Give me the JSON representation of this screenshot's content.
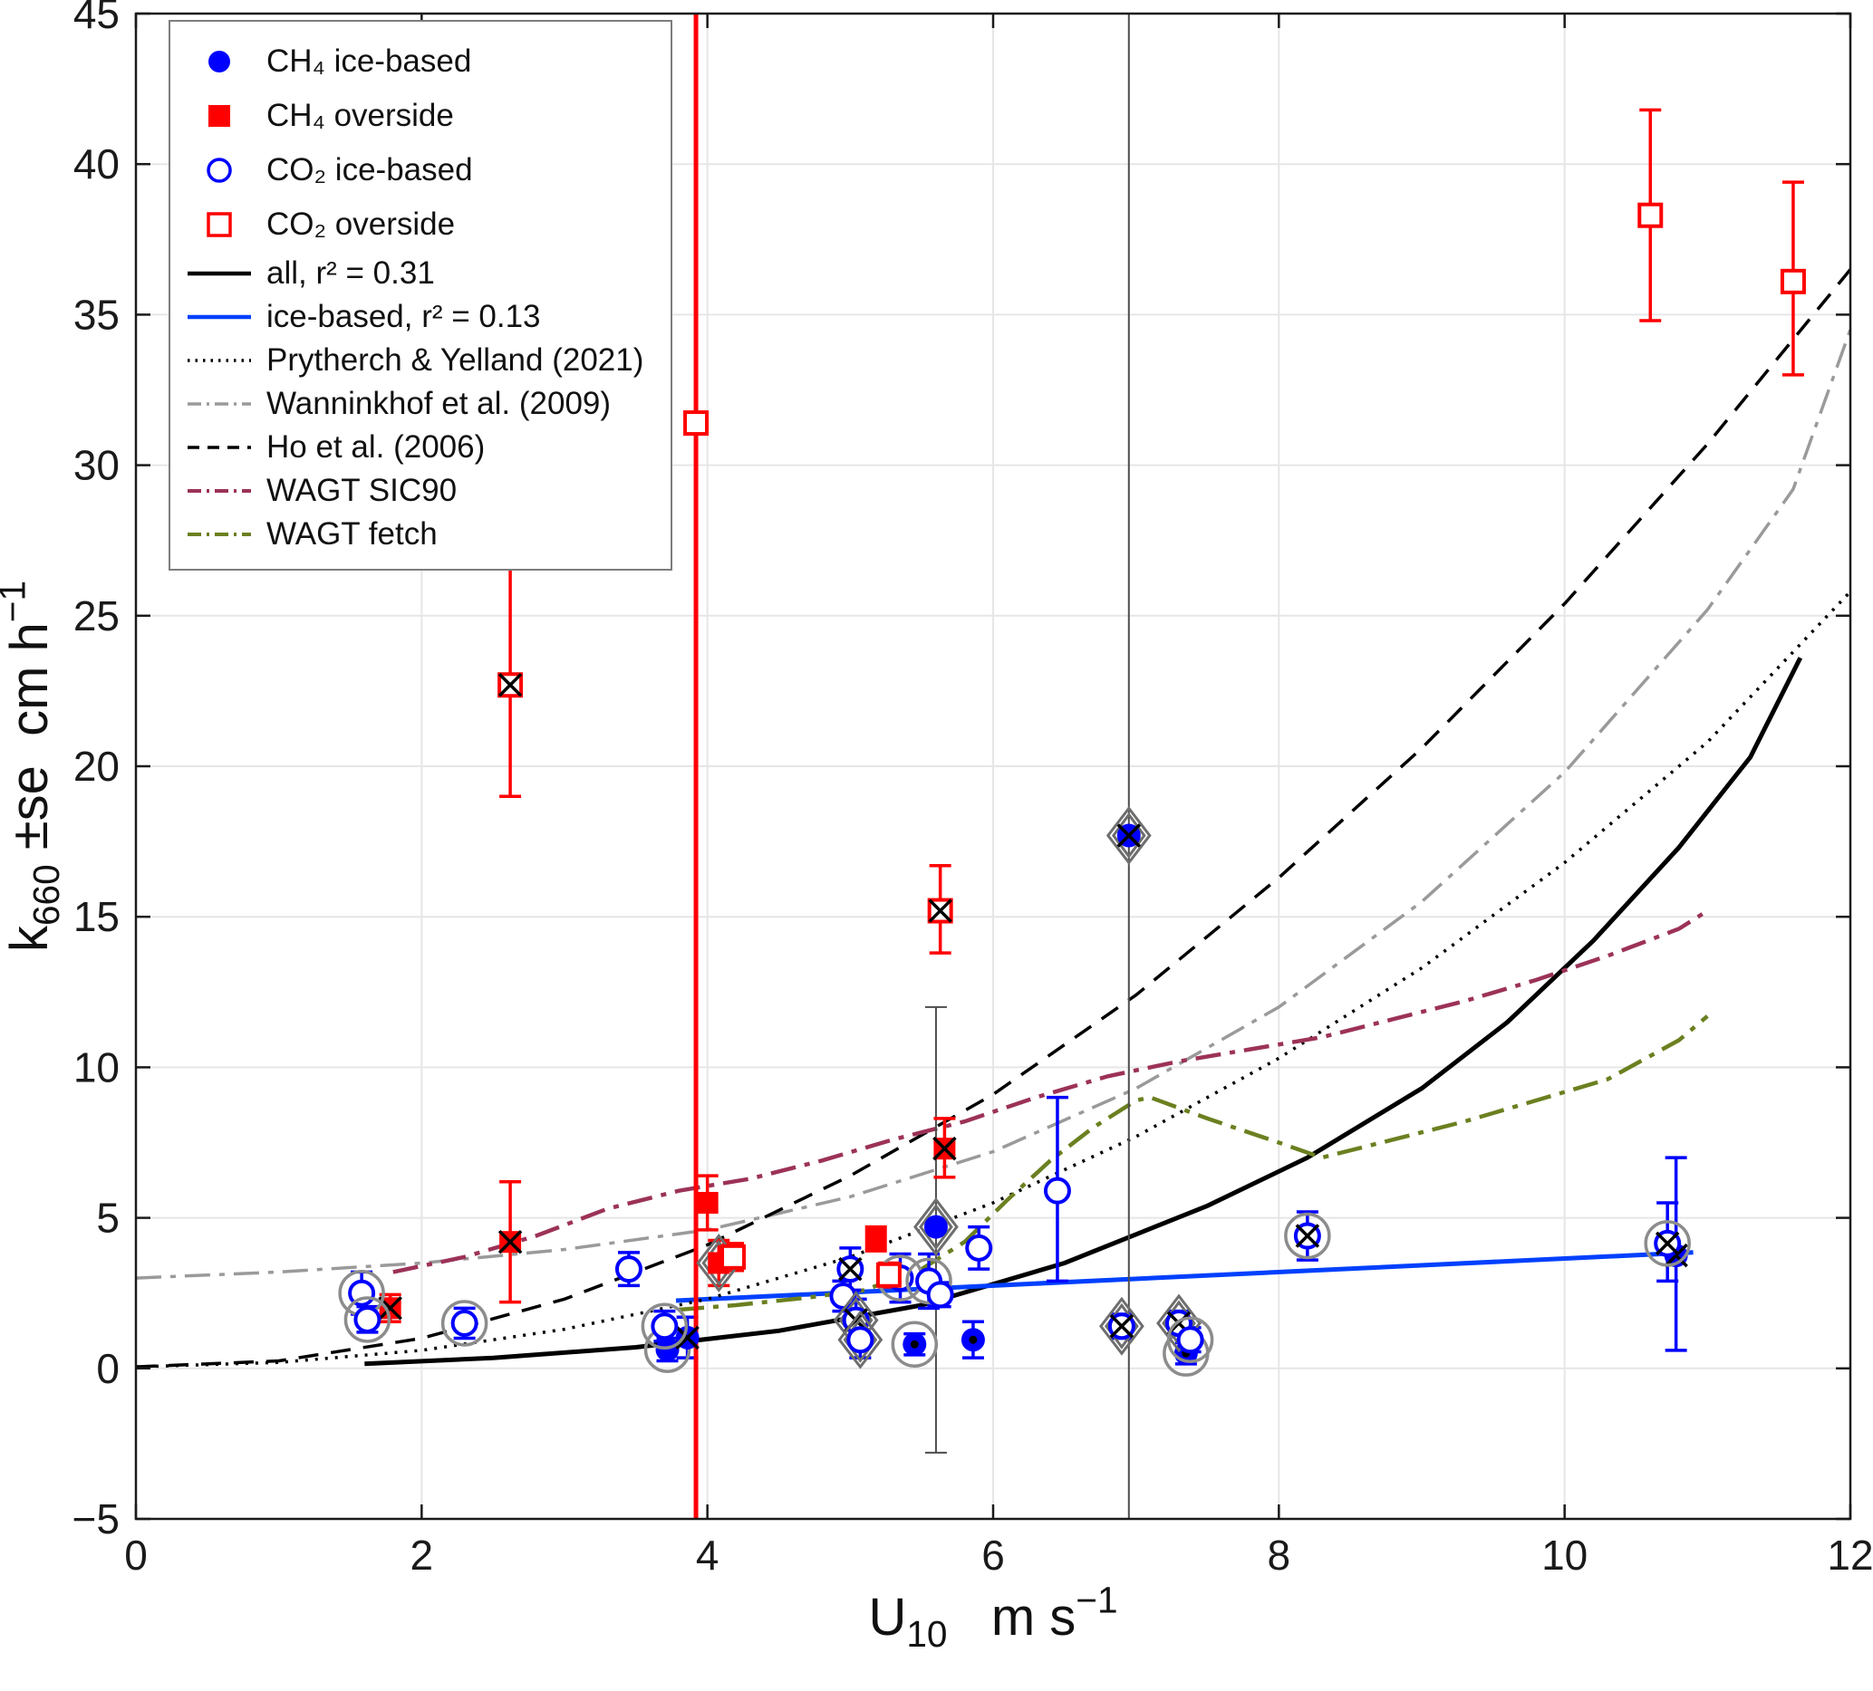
{
  "chart_data": {
    "type": "scatter",
    "title": "",
    "xlabel_parts": [
      [
        "U",
        "n"
      ],
      [
        "10",
        "s"
      ],
      [
        "   m s",
        "n"
      ],
      [
        "−1",
        "u"
      ]
    ],
    "ylabel_parts": [
      [
        "k",
        "n"
      ],
      [
        "660",
        "s"
      ],
      [
        " ±se  cm h",
        "n"
      ],
      [
        "−1",
        "u"
      ]
    ],
    "xlim": [
      0,
      12
    ],
    "ylim": [
      -5,
      45
    ],
    "xticks": [
      0,
      2,
      4,
      6,
      8,
      10,
      12
    ],
    "yticks": [
      -5,
      0,
      5,
      10,
      15,
      20,
      25,
      30,
      35,
      40,
      45
    ],
    "grid": true,
    "grid_color": "#e6e6e6",
    "axis_color": "#1a1a1a",
    "background": "#ffffff",
    "legend_position": "top-left",
    "series": [
      {
        "id": "ch4-ice",
        "name": "CH₄ ice-based",
        "marker": "circle",
        "filled": true,
        "color": "#0000ff",
        "points": [
          {
            "x": 3.72,
            "y": 0.62,
            "lo": 0.25,
            "hi": 1.0,
            "ov": [
              "circ"
            ]
          },
          {
            "x": 3.86,
            "y": 1.02,
            "lo": 0.35,
            "hi": 1.7,
            "ov": [
              "x"
            ]
          },
          {
            "x": 5.45,
            "y": 0.8,
            "lo": 0.45,
            "hi": 1.15,
            "ov": [
              "circ",
              "dot"
            ]
          },
          {
            "x": 5.6,
            "y": 4.7,
            "lo": -2.8,
            "hi": 12.0,
            "ov": [
              "diam"
            ],
            "ec": "#4d4d4d",
            "ew": 2
          },
          {
            "x": 5.86,
            "y": 0.95,
            "lo": 0.35,
            "hi": 1.55,
            "ov": [
              "dot"
            ]
          },
          {
            "x": 6.95,
            "y": 17.7,
            "lo": -6,
            "hi": 46,
            "ov": [
              "diam",
              "x"
            ],
            "ec": "#4d4d4d",
            "ew": 2
          },
          {
            "x": 7.35,
            "y": 0.5,
            "lo": 0.15,
            "hi": 0.85,
            "ov": [
              "circ",
              "dot"
            ]
          },
          {
            "x": 10.78,
            "y": 3.75,
            "lo": 0.6,
            "hi": 7.0,
            "ov": [
              "x"
            ]
          }
        ]
      },
      {
        "id": "ch4-overside",
        "name": "CH₄ overside",
        "marker": "square",
        "filled": true,
        "color": "#ff0000",
        "points": [
          {
            "x": 1.78,
            "y": 2.0,
            "lo": 1.55,
            "hi": 2.45,
            "ov": [
              "x"
            ]
          },
          {
            "x": 2.62,
            "y": 4.2,
            "lo": 2.2,
            "hi": 6.2,
            "ov": [
              "x"
            ]
          },
          {
            "x": 4.0,
            "y": 5.5,
            "lo": 4.6,
            "hi": 6.4
          },
          {
            "x": 4.08,
            "y": 3.5,
            "lo": 2.75,
            "hi": 4.25,
            "ov": [
              "diam"
            ]
          },
          {
            "x": 5.18,
            "y": 4.3,
            "lo": 3.9,
            "hi": 4.7
          },
          {
            "x": 5.66,
            "y": 7.3,
            "lo": 6.35,
            "hi": 8.3,
            "ov": [
              "x"
            ]
          }
        ]
      },
      {
        "id": "co2-ice",
        "name": "CO₂ ice-based",
        "marker": "circle",
        "filled": false,
        "color": "#0000ff",
        "points": [
          {
            "x": 1.58,
            "y": 2.5,
            "lo": 1.8,
            "hi": 3.2,
            "ov": [
              "circ"
            ]
          },
          {
            "x": 1.62,
            "y": 1.62,
            "lo": 1.2,
            "hi": 2.05,
            "ov": [
              "circ"
            ]
          },
          {
            "x": 2.3,
            "y": 1.5,
            "lo": 1.0,
            "hi": 2.0,
            "ov": [
              "circ"
            ]
          },
          {
            "x": 3.45,
            "y": 3.3,
            "lo": 2.75,
            "hi": 3.85
          },
          {
            "x": 3.7,
            "y": 1.4,
            "lo": 0.9,
            "hi": 1.9,
            "ov": [
              "circ"
            ]
          },
          {
            "x": 4.95,
            "y": 2.4,
            "lo": 1.9,
            "hi": 2.9
          },
          {
            "x": 5.0,
            "y": 3.3,
            "lo": 2.6,
            "hi": 4.0,
            "ov": [
              "x"
            ]
          },
          {
            "x": 5.04,
            "y": 1.6,
            "lo": 0.9,
            "hi": 2.3,
            "ov": [
              "diam",
              "x"
            ]
          },
          {
            "x": 5.07,
            "y": 0.95,
            "lo": 0.35,
            "hi": 1.55,
            "ov": [
              "diam"
            ]
          },
          {
            "x": 5.35,
            "y": 3.0,
            "lo": 2.2,
            "hi": 3.8,
            "ov": [
              "circ"
            ]
          },
          {
            "x": 5.55,
            "y": 2.9,
            "lo": 2.0,
            "hi": 3.8,
            "ov": [
              "circ"
            ]
          },
          {
            "x": 5.63,
            "y": 2.45,
            "lo": 2.05,
            "hi": 2.85
          },
          {
            "x": 5.9,
            "y": 4.0,
            "lo": 3.3,
            "hi": 4.7
          },
          {
            "x": 6.45,
            "y": 5.9,
            "lo": 2.9,
            "hi": 9.0
          },
          {
            "x": 6.9,
            "y": 1.4,
            "lo": 1.0,
            "hi": 1.8,
            "ov": [
              "diam",
              "x"
            ]
          },
          {
            "x": 7.3,
            "y": 1.5,
            "lo": 1.1,
            "hi": 1.9,
            "ov": [
              "diam",
              "x"
            ]
          },
          {
            "x": 7.38,
            "y": 0.95,
            "lo": 0.55,
            "hi": 1.35,
            "ov": [
              "circ"
            ]
          },
          {
            "x": 8.2,
            "y": 4.4,
            "lo": 3.6,
            "hi": 5.2,
            "ov": [
              "circ",
              "x"
            ]
          },
          {
            "x": 10.72,
            "y": 4.15,
            "lo": 2.9,
            "hi": 5.5,
            "ov": [
              "circ",
              "x"
            ]
          }
        ]
      },
      {
        "id": "co2-overside",
        "name": "CO₂ overside",
        "marker": "square",
        "filled": false,
        "color": "#ff0000",
        "points": [
          {
            "x": 2.62,
            "y": 22.7,
            "lo": 19.0,
            "hi": 26.6,
            "ov": [
              "x"
            ]
          },
          {
            "x": 3.92,
            "y": 31.4,
            "lo": -6,
            "hi": 46,
            "ew": 5
          },
          {
            "x": 4.18,
            "y": 3.7,
            "lo": 3.25,
            "hi": 4.15
          },
          {
            "x": 5.27,
            "y": 3.1,
            "lo": 2.7,
            "hi": 3.5
          },
          {
            "x": 5.63,
            "y": 15.2,
            "lo": 13.8,
            "hi": 16.7,
            "ov": [
              "x"
            ]
          },
          {
            "x": 10.6,
            "y": 38.3,
            "lo": 34.8,
            "hi": 41.8
          },
          {
            "x": 11.6,
            "y": 36.1,
            "lo": 33.0,
            "hi": 39.4
          }
        ]
      }
    ],
    "curves": [
      {
        "id": "fit-all",
        "name": "all, r² = 0.31",
        "style": "solid",
        "color": "#000000",
        "width": 5,
        "points": [
          [
            1.6,
            0.15
          ],
          [
            2.5,
            0.35
          ],
          [
            3.5,
            0.7
          ],
          [
            4.5,
            1.25
          ],
          [
            5.5,
            2.1
          ],
          [
            6.5,
            3.5
          ],
          [
            7.5,
            5.4
          ],
          [
            8.2,
            7.0
          ],
          [
            9.0,
            9.3
          ],
          [
            9.6,
            11.5
          ],
          [
            10.2,
            14.2
          ],
          [
            10.8,
            17.3
          ],
          [
            11.3,
            20.3
          ],
          [
            11.65,
            23.6
          ]
        ]
      },
      {
        "id": "fit-ice",
        "name": "ice-based, r² = 0.13",
        "style": "solid",
        "color": "#0040ff",
        "width": 5,
        "points": [
          [
            3.78,
            2.25
          ],
          [
            10.9,
            3.85
          ]
        ]
      },
      {
        "id": "prytherch-yelland-2021",
        "name": "Prytherch & Yelland (2021)",
        "style": "dotted",
        "color": "#000000",
        "width": 3.5,
        "points": [
          [
            0,
            0.05
          ],
          [
            1,
            0.2
          ],
          [
            2,
            0.6
          ],
          [
            3,
            1.3
          ],
          [
            4,
            2.3
          ],
          [
            5,
            3.7
          ],
          [
            6,
            5.5
          ],
          [
            7,
            7.7
          ],
          [
            8,
            10.3
          ],
          [
            9,
            13.3
          ],
          [
            10,
            16.8
          ],
          [
            11,
            20.8
          ],
          [
            12,
            25.8
          ]
        ]
      },
      {
        "id": "wanninkhof-2009",
        "name": "Wanninkhof et al. (2009)",
        "style": "dashdot",
        "color": "#9a9a9a",
        "width": 3.5,
        "points": [
          [
            0,
            3.0
          ],
          [
            1,
            3.2
          ],
          [
            2,
            3.5
          ],
          [
            3,
            3.95
          ],
          [
            4,
            4.6
          ],
          [
            5,
            5.7
          ],
          [
            6,
            7.2
          ],
          [
            7,
            9.3
          ],
          [
            8,
            12.0
          ],
          [
            9,
            15.5
          ],
          [
            10,
            19.8
          ],
          [
            11,
            25.2
          ],
          [
            11.6,
            29.2
          ],
          [
            12,
            34.5
          ]
        ]
      },
      {
        "id": "ho-2006",
        "name": "Ho et al. (2006)",
        "style": "dashed",
        "color": "#000000",
        "width": 3.5,
        "points": [
          [
            0,
            0.05
          ],
          [
            1,
            0.25
          ],
          [
            2,
            1.0
          ],
          [
            3,
            2.3
          ],
          [
            4,
            4.1
          ],
          [
            5,
            6.4
          ],
          [
            6,
            9.1
          ],
          [
            7,
            12.4
          ],
          [
            8,
            16.3
          ],
          [
            9,
            20.6
          ],
          [
            10,
            25.4
          ],
          [
            11,
            30.7
          ],
          [
            12,
            36.5
          ]
        ]
      },
      {
        "id": "wagt-sic90",
        "name": "WAGT SIC90",
        "style": "dashdot",
        "color": "#9c3258",
        "width": 4.5,
        "points": [
          [
            1.8,
            3.2
          ],
          [
            2.3,
            3.7
          ],
          [
            2.8,
            4.4
          ],
          [
            3.3,
            5.3
          ],
          [
            3.8,
            5.9
          ],
          [
            4.3,
            6.3
          ],
          [
            4.8,
            6.9
          ],
          [
            5.3,
            7.6
          ],
          [
            5.8,
            8.2
          ],
          [
            6.3,
            9.0
          ],
          [
            6.8,
            9.7
          ],
          [
            7.3,
            10.2
          ],
          [
            7.8,
            10.6
          ],
          [
            8.3,
            11.0
          ],
          [
            8.8,
            11.6
          ],
          [
            9.3,
            12.2
          ],
          [
            9.8,
            12.9
          ],
          [
            10.3,
            13.7
          ],
          [
            10.8,
            14.6
          ],
          [
            11.0,
            15.2
          ]
        ]
      },
      {
        "id": "wagt-fetch",
        "name": "WAGT fetch",
        "style": "dashdot",
        "color": "#6b8020",
        "width": 4.5,
        "points": [
          [
            3.8,
            1.95
          ],
          [
            4.2,
            2.1
          ],
          [
            4.7,
            2.35
          ],
          [
            5.1,
            2.6
          ],
          [
            5.5,
            3.3
          ],
          [
            5.8,
            4.2
          ],
          [
            6.1,
            5.6
          ],
          [
            6.4,
            6.9
          ],
          [
            6.7,
            8.0
          ],
          [
            7.0,
            8.9
          ],
          [
            7.1,
            9.0
          ],
          [
            7.5,
            8.3
          ],
          [
            8.0,
            7.5
          ],
          [
            8.3,
            7.0
          ],
          [
            8.8,
            7.6
          ],
          [
            9.3,
            8.2
          ],
          [
            9.8,
            8.9
          ],
          [
            10.3,
            9.6
          ],
          [
            10.8,
            10.9
          ],
          [
            11.0,
            11.7
          ]
        ]
      }
    ],
    "legend": [
      {
        "type": "marker",
        "marker": "circle",
        "filled": true,
        "color": "#0000ff",
        "label": "CH₄ ice-based"
      },
      {
        "type": "marker",
        "marker": "square",
        "filled": true,
        "color": "#ff0000",
        "label": "CH₄ overside"
      },
      {
        "type": "marker",
        "marker": "circle",
        "filled": false,
        "color": "#0000ff",
        "label": "CO₂ ice-based"
      },
      {
        "type": "marker",
        "marker": "square",
        "filled": false,
        "color": "#ff0000",
        "label": "CO₂ overside"
      },
      {
        "type": "line",
        "style": "solid",
        "color": "#000000",
        "width": 4.5,
        "label": "all, r² = 0.31"
      },
      {
        "type": "line",
        "style": "solid",
        "color": "#0040ff",
        "width": 4.5,
        "label": "ice-based, r² = 0.13"
      },
      {
        "type": "line",
        "style": "dotted",
        "color": "#000000",
        "width": 3.5,
        "label": "Prytherch & Yelland (2021)"
      },
      {
        "type": "line",
        "style": "dashdot",
        "color": "#9a9a9a",
        "width": 3.5,
        "label": "Wanninkhof et al. (2009)"
      },
      {
        "type": "line",
        "style": "dashed",
        "color": "#000000",
        "width": 3.5,
        "label": "Ho et al. (2006)"
      },
      {
        "type": "line",
        "style": "dashdot",
        "color": "#9c3258",
        "width": 4,
        "label": "WAGT SIC90"
      },
      {
        "type": "line",
        "style": "dashdot",
        "color": "#6b8020",
        "width": 4,
        "label": "WAGT fetch"
      }
    ],
    "overlay_meaning": {
      "x": "black-x-marker",
      "circ": "gray-circle-outline",
      "diam": "gray-diamond-outline",
      "dot": "black-center-dot"
    }
  }
}
